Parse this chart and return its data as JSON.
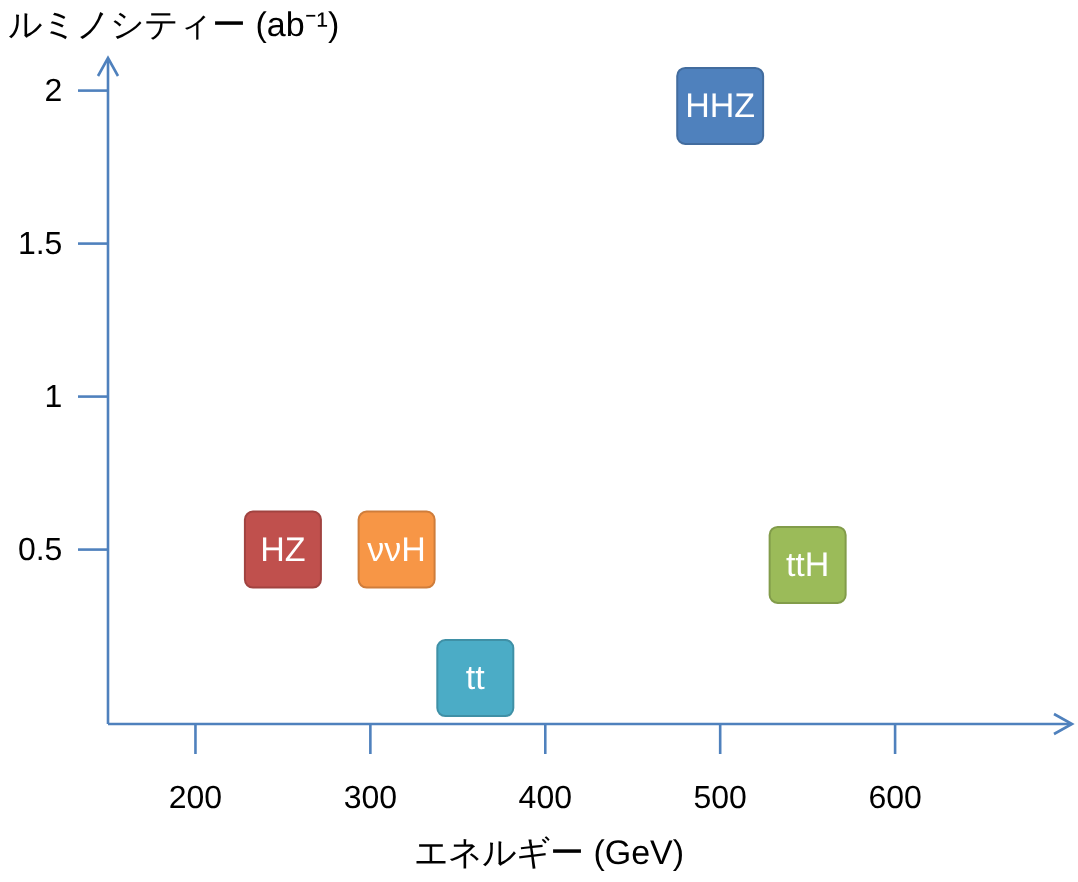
{
  "chart_data": {
    "type": "scatter",
    "xlabel": "エネルギー (GeV)",
    "ylabel": "ルミノシティー (ab⁻¹)",
    "xlim": [
      150,
      700
    ],
    "xticks": [
      200,
      300,
      400,
      500,
      600
    ],
    "ylim": [
      -0.07,
      2.1
    ],
    "yticks": [
      0.5,
      1,
      1.5,
      2
    ],
    "marker": "square",
    "grid": false,
    "legend": false,
    "series": [
      {
        "name": "HZ",
        "color": "#c0504d",
        "x": [
          250
        ],
        "values": [
          0.5
        ]
      },
      {
        "name": "ννH",
        "color": "#f79646",
        "x": [
          315
        ],
        "values": [
          0.5
        ]
      },
      {
        "name": "tt",
        "color": "#4bacc6",
        "x": [
          360
        ],
        "values": [
          0.08
        ]
      },
      {
        "name": "HHZ",
        "color": "#4f81bd",
        "x": [
          500
        ],
        "values": [
          1.95
        ]
      },
      {
        "name": "ttH",
        "color": "#9bbb59",
        "x": [
          550
        ],
        "values": [
          0.45
        ]
      }
    ]
  }
}
